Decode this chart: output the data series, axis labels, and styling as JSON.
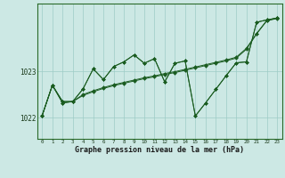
{
  "title": "Graphe pression niveau de la mer (hPa)",
  "hours": [
    0,
    1,
    2,
    3,
    4,
    5,
    6,
    7,
    8,
    9,
    10,
    11,
    12,
    13,
    14,
    15,
    16,
    17,
    18,
    19,
    20,
    21,
    22,
    23
  ],
  "ylim": [
    1021.55,
    1024.45
  ],
  "yticks": [
    1022,
    1023
  ],
  "background_color": "#cce8e4",
  "grid_color": "#9eccc6",
  "line_color": "#1a5c20",
  "series": [
    [
      1022.05,
      1022.7,
      1022.32,
      1022.35,
      1022.48,
      1022.56,
      1022.63,
      1022.69,
      1022.74,
      1022.79,
      1022.84,
      1022.88,
      1022.93,
      1022.97,
      1023.02,
      1023.07,
      1023.12,
      1023.17,
      1023.22,
      1023.28,
      1023.47,
      1023.8,
      1024.08,
      1024.13
    ],
    [
      1022.05,
      1022.7,
      1022.32,
      1022.35,
      1022.5,
      1022.58,
      1022.65,
      1022.71,
      1022.76,
      1022.81,
      1022.86,
      1022.9,
      1022.95,
      1022.99,
      1023.04,
      1023.09,
      1023.14,
      1023.19,
      1023.24,
      1023.3,
      1023.49,
      1023.81,
      1024.09,
      1024.14
    ],
    [
      1022.05,
      1022.7,
      1022.35,
      1022.35,
      1022.62,
      1023.05,
      1022.82,
      1023.1,
      1023.2,
      1023.35,
      1023.17,
      1023.27,
      1022.77,
      1023.17,
      1023.22,
      1022.04,
      1022.32,
      1022.61,
      1022.9,
      1023.18,
      1023.2,
      1024.05,
      1024.1,
      1024.14
    ],
    [
      1022.05,
      1022.7,
      1022.35,
      1022.35,
      1022.62,
      1023.05,
      1022.82,
      1023.1,
      1023.2,
      1023.35,
      1023.17,
      1023.27,
      1022.77,
      1023.17,
      1023.22,
      1022.04,
      1022.32,
      1022.61,
      1022.9,
      1023.18,
      1023.2,
      1024.05,
      1024.1,
      1024.14
    ]
  ],
  "figwidth": 3.2,
  "figheight": 2.0,
  "dpi": 100
}
